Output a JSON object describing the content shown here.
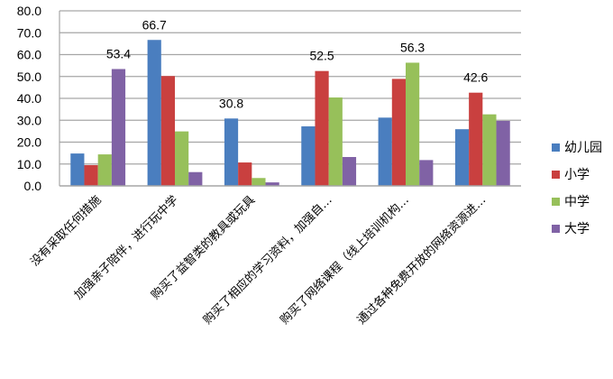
{
  "chart_data": {
    "type": "bar",
    "title": "",
    "xlabel": "",
    "ylabel": "",
    "ylim": [
      0,
      80
    ],
    "yticks": [
      "0.0",
      "10.0",
      "20.0",
      "30.0",
      "40.0",
      "50.0",
      "60.0",
      "70.0",
      "80.0"
    ],
    "grid": true,
    "legend_position": "right",
    "categories": [
      "没有采取任何措施",
      "加强亲子陪伴，进行玩中学",
      "购买了益智类的教具或玩具",
      "购买了相应的学习资料，加强自…",
      "购买了网络课程（线上培训机构…",
      "通过各种免费开放的网络资源进…"
    ],
    "series": [
      {
        "name": "幼儿园",
        "color": "#4a7ebf",
        "values": [
          14.8,
          66.7,
          30.8,
          27.2,
          31.2,
          25.9
        ]
      },
      {
        "name": "小学",
        "color": "#c9403f",
        "values": [
          9.5,
          50.2,
          10.7,
          52.5,
          48.9,
          42.6
        ]
      },
      {
        "name": "中学",
        "color": "#97c05a",
        "values": [
          14.4,
          24.9,
          3.6,
          40.4,
          56.3,
          32.7
        ]
      },
      {
        "name": "大学",
        "color": "#8062a5",
        "values": [
          53.4,
          6.3,
          1.6,
          13.2,
          11.8,
          29.7
        ]
      }
    ],
    "annotations": [
      {
        "category": 0,
        "text": "53.4"
      },
      {
        "category": 1,
        "text": "66.7"
      },
      {
        "category": 2,
        "text": "30.8"
      },
      {
        "category": 3,
        "text": "52.5"
      },
      {
        "category": 4,
        "text": "56.3"
      },
      {
        "category": 5,
        "text": "42.6"
      }
    ]
  }
}
